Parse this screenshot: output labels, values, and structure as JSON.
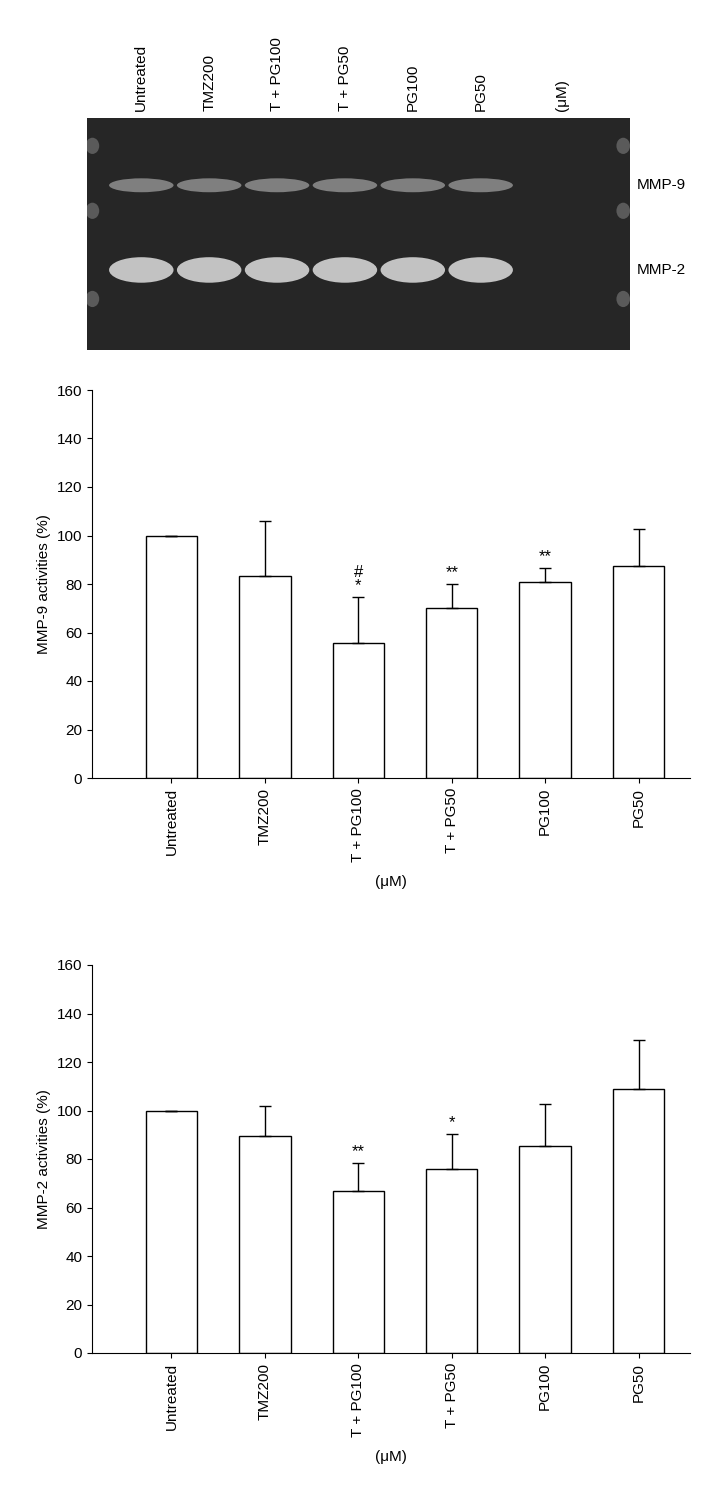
{
  "gel": {
    "lanes": [
      "Untreated",
      "TMZ200",
      "T + PG100",
      "T + PG50",
      "PG100",
      "PG50"
    ],
    "unit": "(μM)",
    "bands": [
      "MMP-9",
      "MMP-2"
    ]
  },
  "chart_data": [
    {
      "type": "bar",
      "categories": [
        "Untreated",
        "TMZ200",
        "T + PG100",
        "T + PG50",
        "PG100",
        "PG50"
      ],
      "values": [
        100,
        83.5,
        55.5,
        70,
        81,
        87.5
      ],
      "errors": [
        0,
        22.5,
        19,
        10,
        5.5,
        15
      ],
      "annotations": [
        null,
        null,
        [
          "#",
          "*"
        ],
        [
          "**"
        ],
        [
          "**"
        ],
        null
      ],
      "y_label": "MMP-9 activities (%)",
      "x_label": "(μM)",
      "ylim": [
        0,
        160
      ],
      "yticks": [
        0,
        20,
        40,
        60,
        80,
        100,
        120,
        140,
        160
      ],
      "color": "#ffffff"
    },
    {
      "type": "bar",
      "categories": [
        "Untreated",
        "TMZ200",
        "T + PG100",
        "T + PG50",
        "PG100",
        "PG50"
      ],
      "values": [
        100,
        89.5,
        67,
        76,
        85.5,
        109
      ],
      "errors": [
        0,
        12.5,
        11.5,
        14.5,
        17,
        20
      ],
      "annotations": [
        null,
        null,
        [
          "**"
        ],
        [
          "*"
        ],
        null,
        null
      ],
      "y_label": "MMP-2 activities (%)",
      "x_label": "(μM)",
      "ylim": [
        0,
        160
      ],
      "yticks": [
        0,
        20,
        40,
        60,
        80,
        100,
        120,
        140,
        160
      ],
      "color": "#ffffff"
    }
  ]
}
